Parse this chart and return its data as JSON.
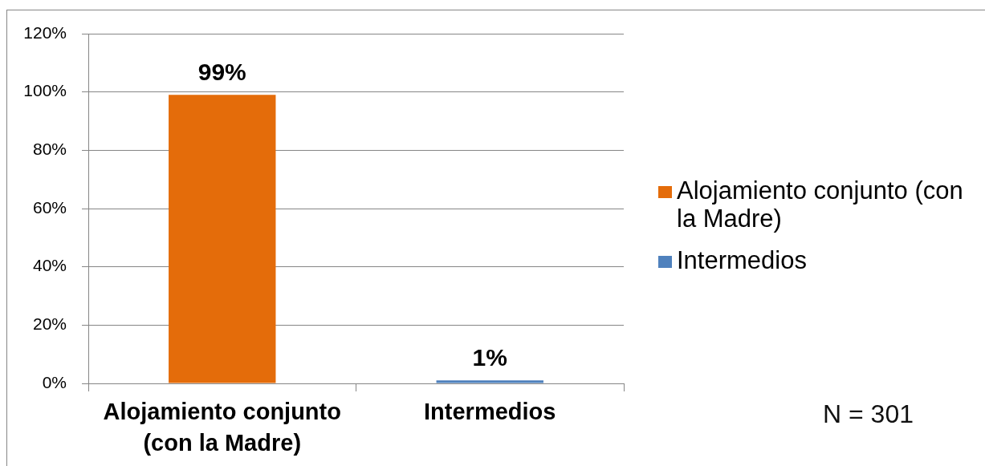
{
  "chart_data": {
    "type": "bar",
    "categories": [
      "Alojamiento conjunto (con la Madre)",
      "Intermedios"
    ],
    "series": [
      {
        "name": "Alojamiento conjunto (con la Madre)",
        "color": "#e46c0a",
        "values": [
          99,
          null
        ],
        "value_labels": [
          "99%",
          null
        ]
      },
      {
        "name": "Intermedios",
        "color": "#4f81bd",
        "values": [
          null,
          1
        ],
        "value_labels": [
          null,
          "1%"
        ]
      }
    ],
    "ylim": [
      0,
      120
    ],
    "yticks": [
      {
        "value": 0,
        "label": "0%"
      },
      {
        "value": 20,
        "label": "20%"
      },
      {
        "value": 40,
        "label": "40%"
      },
      {
        "value": 60,
        "label": "60%"
      },
      {
        "value": 80,
        "label": "80%"
      },
      {
        "value": 100,
        "label": "100%"
      },
      {
        "value": 120,
        "label": "120%"
      }
    ],
    "grid": "y",
    "legend": "right",
    "annotations": [
      "N = 301"
    ]
  }
}
